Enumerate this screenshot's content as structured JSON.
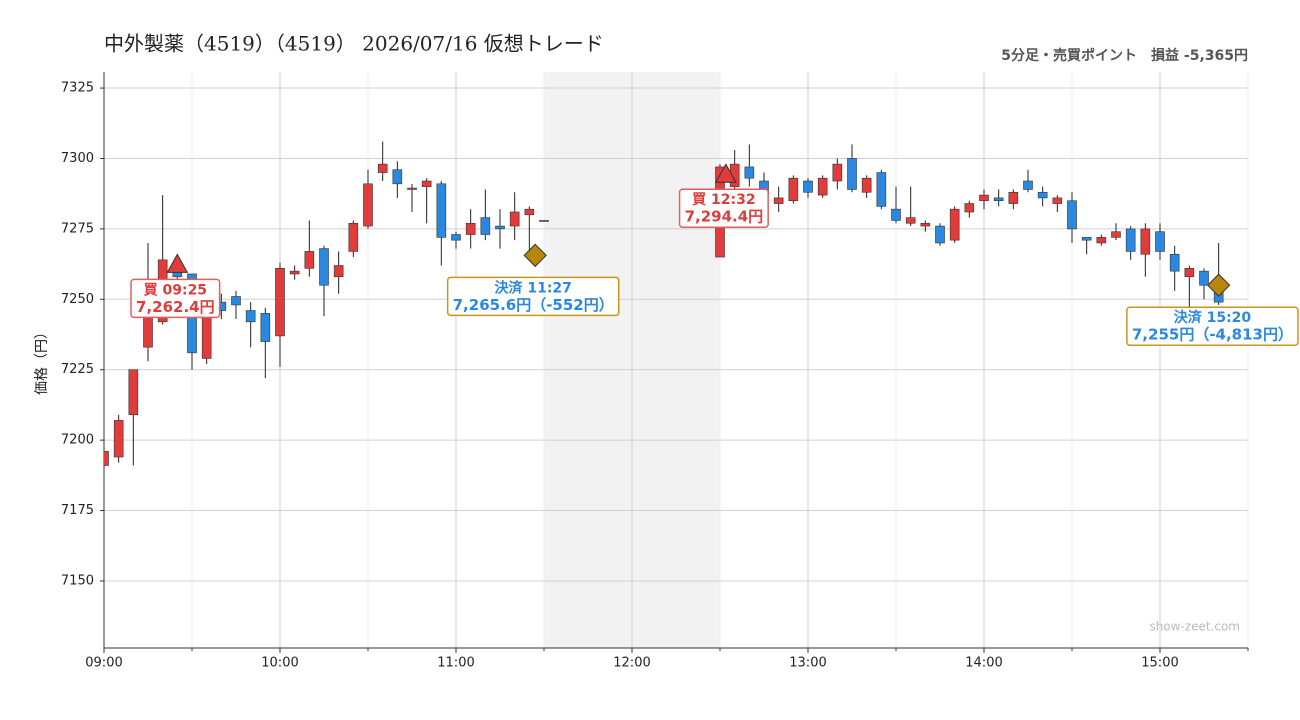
{
  "chart_data": {
    "type": "candlestick",
    "title": "中外製薬（4519）（4519） 2026/07/16 仮想トレード",
    "subtitle": "5分足・売買ポイント　損益 -5,365円",
    "y_label": "価格（円）",
    "watermark": "show-zeet.com",
    "x": [
      "09:00",
      "09:05",
      "09:10",
      "09:15",
      "09:20",
      "09:25",
      "09:30",
      "09:35",
      "09:40",
      "09:45",
      "09:50",
      "09:55",
      "10:00",
      "10:05",
      "10:10",
      "10:15",
      "10:20",
      "10:25",
      "10:30",
      "10:35",
      "10:40",
      "10:45",
      "10:50",
      "10:55",
      "11:00",
      "11:05",
      "11:10",
      "11:15",
      "11:20",
      "11:25",
      "11:30",
      "12:30",
      "12:35",
      "12:40",
      "12:45",
      "12:50",
      "12:55",
      "13:00",
      "13:05",
      "13:10",
      "13:15",
      "13:20",
      "13:25",
      "13:30",
      "13:35",
      "13:40",
      "13:45",
      "13:50",
      "13:55",
      "14:00",
      "14:05",
      "14:10",
      "14:15",
      "14:20",
      "14:25",
      "14:30",
      "14:35",
      "14:40",
      "14:45",
      "14:50",
      "14:55",
      "15:00",
      "15:05",
      "15:10",
      "15:15",
      "15:20"
    ],
    "open": [
      7191,
      7194,
      7209,
      7233,
      7242,
      7260,
      7259,
      7229,
      7249,
      7251,
      7246,
      7245,
      7237,
      7259,
      7261,
      7268,
      7258,
      7267,
      7276,
      7295,
      7296,
      7289,
      7290,
      7291,
      7273,
      7273,
      7279,
      7276,
      7276,
      7280,
      7278,
      7265,
      7290,
      7297,
      7292,
      7284,
      7285,
      7292,
      7287,
      7292,
      7300,
      7288,
      7295,
      7282,
      7277,
      7276,
      7276,
      7271,
      7281,
      7285,
      7286,
      7284,
      7292,
      7288,
      7284,
      7285,
      7272,
      7270,
      7272,
      7275,
      7266,
      7274,
      7266,
      7258,
      7260,
      7254
    ],
    "high": [
      7197,
      7209,
      7225,
      7270,
      7287,
      7262,
      7259,
      7256,
      7252,
      7253,
      7249,
      7247,
      7263,
      7262,
      7278,
      7269,
      7267,
      7278,
      7296,
      7306,
      7299,
      7291,
      7293,
      7292,
      7274,
      7282,
      7289,
      7282,
      7288,
      7283,
      7278,
      7298,
      7303,
      7305,
      7295,
      7290,
      7294,
      7293,
      7294,
      7300,
      7305,
      7294,
      7296,
      7290,
      7290,
      7278,
      7277,
      7283,
      7285,
      7289,
      7289,
      7289,
      7296,
      7290,
      7287,
      7288,
      7272,
      7273,
      7277,
      7276,
      7277,
      7277,
      7269,
      7262,
      7261,
      7270
    ],
    "low": [
      7190,
      7192,
      7191,
      7228,
      7241,
      7256,
      7225,
      7227,
      7243,
      7243,
      7233,
      7222,
      7226,
      7257,
      7258,
      7244,
      7252,
      7265,
      7275,
      7292,
      7286,
      7281,
      7277,
      7262,
      7268,
      7268,
      7271,
      7268,
      7271,
      7265,
      7278,
      7265,
      7288,
      7290,
      7284,
      7281,
      7284,
      7286,
      7286,
      7289,
      7288,
      7286,
      7282,
      7277,
      7276,
      7274,
      7269,
      7270,
      7279,
      7282,
      7283,
      7282,
      7288,
      7283,
      7281,
      7270,
      7266,
      7269,
      7271,
      7264,
      7258,
      7264,
      7253,
      7245,
      7250,
      7248
    ],
    "close": [
      7196,
      7207,
      7225,
      7250,
      7264,
      7258,
      7231,
      7253,
      7246,
      7248,
      7242,
      7235,
      7261,
      7260,
      7267,
      7255,
      7262,
      7277,
      7291,
      7298,
      7291,
      7289.5,
      7292,
      7272,
      7271,
      7277,
      7273,
      7275,
      7281,
      7282,
      7278,
      7297,
      7298,
      7293,
      7287,
      7286,
      7293,
      7288,
      7293,
      7298,
      7289,
      7293,
      7283,
      7278,
      7279,
      7277,
      7270,
      7282,
      7284,
      7287,
      7285,
      7288,
      7289,
      7286,
      7286,
      7275,
      7271,
      7272,
      7274,
      7267,
      7275,
      7267,
      7260,
      7261,
      7255,
      7249
    ],
    "up_color": "#e03c3c",
    "down_color": "#2a88e0",
    "xlim": [
      "09:00",
      "15:30"
    ],
    "xticks": [
      "09:00",
      "10:00",
      "11:00",
      "12:00",
      "13:00",
      "14:00",
      "15:00"
    ],
    "xminorticks": [
      "09:30",
      "10:30",
      "11:30",
      "12:30",
      "13:30",
      "14:30",
      "15:30"
    ],
    "ylim": [
      7126.2,
      7330.7
    ],
    "yticks": [
      7150,
      7175,
      7200,
      7225,
      7250,
      7275,
      7300,
      7325
    ],
    "grid": true,
    "shaded_range": [
      "11:30",
      "12:30"
    ],
    "markers": [
      {
        "type": "buy",
        "label": "買 09:25",
        "time": "09:25",
        "price": 7262.4,
        "price_label": "7,262.4円"
      },
      {
        "type": "sell",
        "label": "決済 11:27",
        "time": "11:27",
        "price": 7265.6,
        "price_label": "7,265.6円（-552円）"
      },
      {
        "type": "buy",
        "label": "買 12:32",
        "time": "12:32",
        "price": 7294.4,
        "price_label": "7,294.4円"
      },
      {
        "type": "sell",
        "label": "決済 15:20",
        "time": "15:20",
        "price": 7255,
        "price_label": "7,255円（-4,813円）"
      }
    ]
  }
}
